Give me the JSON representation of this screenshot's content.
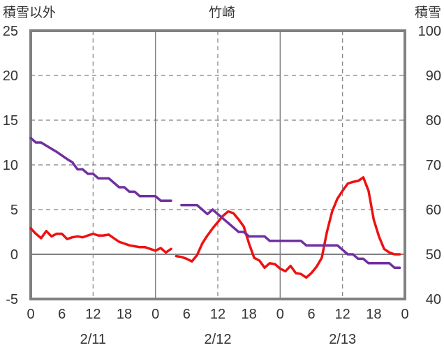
{
  "chart_data": {
    "type": "line",
    "title": "竹崎",
    "left_axis_label": "積雪以外",
    "right_axis_label": "積雪",
    "y_left": {
      "min": -5,
      "max": 25,
      "ticks": [
        "-5",
        "0",
        "5",
        "10",
        "15",
        "20",
        "25"
      ]
    },
    "y_right": {
      "min": 40,
      "max": 100,
      "ticks": [
        "40",
        "50",
        "60",
        "70",
        "80",
        "90",
        "100"
      ]
    },
    "x_hours": {
      "min": 0,
      "max": 72
    },
    "x_tick_labels": [
      {
        "hour": 0,
        "label": "0"
      },
      {
        "hour": 6,
        "label": "6"
      },
      {
        "hour": 12,
        "label": "12"
      },
      {
        "hour": 18,
        "label": "18"
      },
      {
        "hour": 24,
        "label": "0"
      },
      {
        "hour": 30,
        "label": "6"
      },
      {
        "hour": 36,
        "label": "12"
      },
      {
        "hour": 42,
        "label": "18"
      },
      {
        "hour": 48,
        "label": "0"
      },
      {
        "hour": 54,
        "label": "6"
      },
      {
        "hour": 60,
        "label": "12"
      },
      {
        "hour": 66,
        "label": "18"
      },
      {
        "hour": 72,
        "label": "0"
      }
    ],
    "date_labels": [
      {
        "hour": 12,
        "label": "2/11"
      },
      {
        "hour": 36,
        "label": "2/12"
      },
      {
        "hour": 60,
        "label": "2/13"
      }
    ],
    "grid": {
      "dashed_vertical_hours": [
        12,
        36,
        60
      ],
      "solid_vertical_hours": [
        24,
        48
      ],
      "dashed_horizontal_values": [
        5,
        10,
        15,
        20
      ],
      "zero_line": true
    },
    "colors": {
      "red_series": "#ee1111",
      "purple_series": "#7030a0",
      "axis": "#808080",
      "grid": "#808080"
    },
    "series": [
      {
        "axis": "left",
        "color": "#ee1111",
        "segments": [
          [
            [
              0,
              2.9
            ],
            [
              1,
              2.3
            ],
            [
              2,
              1.8
            ],
            [
              3,
              2.6
            ],
            [
              4,
              2.0
            ],
            [
              5,
              2.3
            ],
            [
              6,
              2.3
            ],
            [
              7,
              1.7
            ],
            [
              8,
              1.9
            ],
            [
              9,
              2.0
            ],
            [
              10,
              1.9
            ],
            [
              11,
              2.1
            ],
            [
              12,
              2.3
            ],
            [
              13,
              2.1
            ],
            [
              14,
              2.1
            ],
            [
              15,
              2.2
            ],
            [
              16,
              1.8
            ],
            [
              17,
              1.4
            ],
            [
              18,
              1.2
            ],
            [
              19,
              1.0
            ],
            [
              20,
              0.9
            ],
            [
              21,
              0.8
            ],
            [
              22,
              0.8
            ],
            [
              23,
              0.6
            ],
            [
              24,
              0.4
            ],
            [
              25,
              0.7
            ],
            [
              26,
              0.2
            ],
            [
              27,
              0.6
            ]
          ],
          [
            [
              28,
              -0.2
            ],
            [
              29,
              -0.3
            ],
            [
              30,
              -0.5
            ],
            [
              31,
              -0.8
            ],
            [
              32,
              -0.1
            ],
            [
              33,
              1.2
            ],
            [
              34,
              2.1
            ],
            [
              35,
              2.9
            ],
            [
              36,
              3.6
            ],
            [
              37,
              4.3
            ],
            [
              38,
              4.8
            ],
            [
              39,
              4.6
            ],
            [
              40,
              3.9
            ],
            [
              41,
              3.1
            ],
            [
              42,
              1.2
            ],
            [
              43,
              -0.4
            ],
            [
              44,
              -0.7
            ],
            [
              45,
              -1.5
            ],
            [
              46,
              -1.0
            ],
            [
              47,
              -1.1
            ],
            [
              48,
              -1.6
            ],
            [
              49,
              -1.9
            ],
            [
              50,
              -1.3
            ],
            [
              51,
              -2.1
            ],
            [
              52,
              -2.2
            ],
            [
              53,
              -2.6
            ],
            [
              54,
              -2.1
            ],
            [
              55,
              -1.4
            ],
            [
              56,
              -0.4
            ],
            [
              57,
              2.5
            ],
            [
              58,
              4.8
            ],
            [
              59,
              6.2
            ],
            [
              60,
              7.1
            ],
            [
              61,
              7.9
            ],
            [
              62,
              8.1
            ],
            [
              63,
              8.2
            ],
            [
              64,
              8.6
            ],
            [
              65,
              7.1
            ],
            [
              66,
              3.9
            ],
            [
              67,
              2.0
            ],
            [
              68,
              0.6
            ],
            [
              69,
              0.2
            ],
            [
              70,
              0.0
            ],
            [
              71,
              0.0
            ]
          ]
        ]
      },
      {
        "axis": "right",
        "color": "#7030a0",
        "segments": [
          [
            [
              0,
              76
            ],
            [
              1,
              75
            ],
            [
              2,
              75
            ],
            [
              3,
              74.3
            ],
            [
              4,
              73.6
            ],
            [
              5,
              72.9
            ],
            [
              6,
              72.1
            ],
            [
              7,
              71.3
            ],
            [
              8,
              70.6
            ],
            [
              9,
              69
            ],
            [
              10,
              69
            ],
            [
              11,
              68
            ],
            [
              12,
              68
            ],
            [
              13,
              67
            ],
            [
              14,
              67
            ],
            [
              15,
              67
            ],
            [
              16,
              66
            ],
            [
              17,
              65
            ],
            [
              18,
              65
            ],
            [
              19,
              64
            ],
            [
              20,
              64
            ],
            [
              21,
              63
            ],
            [
              22,
              63
            ],
            [
              23,
              63
            ],
            [
              24,
              63
            ],
            [
              25,
              62
            ],
            [
              26,
              62
            ],
            [
              27,
              62
            ]
          ],
          [
            [
              29,
              61
            ],
            [
              30,
              61
            ],
            [
              31,
              61
            ],
            [
              32,
              61
            ],
            [
              33,
              60
            ],
            [
              34,
              59
            ],
            [
              35,
              60
            ],
            [
              36,
              59
            ],
            [
              37,
              58
            ],
            [
              38,
              57
            ],
            [
              39,
              56
            ],
            [
              40,
              55
            ],
            [
              41,
              55
            ],
            [
              42,
              54
            ],
            [
              43,
              54
            ],
            [
              44,
              54
            ],
            [
              45,
              54
            ],
            [
              46,
              53
            ],
            [
              47,
              53
            ],
            [
              48,
              53
            ],
            [
              49,
              53
            ],
            [
              50,
              53
            ],
            [
              51,
              53
            ],
            [
              52,
              53
            ],
            [
              53,
              52
            ],
            [
              54,
              52
            ],
            [
              55,
              52
            ],
            [
              56,
              52
            ],
            [
              57,
              52
            ],
            [
              58,
              52
            ],
            [
              59,
              52
            ],
            [
              60,
              51
            ],
            [
              61,
              50
            ],
            [
              62,
              50
            ],
            [
              63,
              49
            ],
            [
              64,
              49
            ],
            [
              65,
              48
            ],
            [
              66,
              48
            ],
            [
              67,
              48
            ],
            [
              68,
              48
            ],
            [
              69,
              48
            ],
            [
              70,
              47
            ],
            [
              71,
              47
            ]
          ]
        ]
      }
    ]
  }
}
